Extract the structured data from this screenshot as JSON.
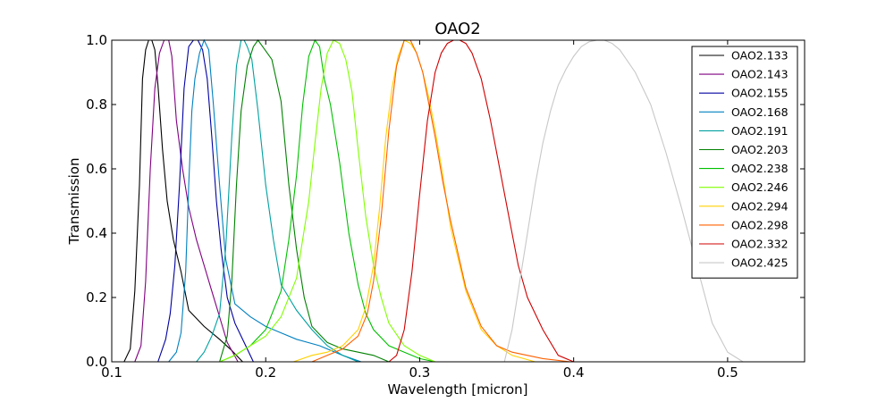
{
  "chart_data": {
    "type": "line",
    "title": "OAO2",
    "xlabel": "Wavelength [micron]",
    "ylabel": "Transmission",
    "xlim": [
      0.1,
      0.55
    ],
    "ylim": [
      0.0,
      1.0
    ],
    "xticks": [
      "0.1",
      "0.2",
      "0.3",
      "0.4",
      "0.5"
    ],
    "xtick_values": [
      0.1,
      0.2,
      0.3,
      0.4,
      0.5
    ],
    "yticks": [
      "0.0",
      "0.2",
      "0.4",
      "0.6",
      "0.8",
      "1.0"
    ],
    "ytick_values": [
      0.0,
      0.2,
      0.4,
      0.6,
      0.8,
      1.0
    ],
    "grid": false,
    "legend_position": "top-right",
    "series": [
      {
        "name": "OAO2.133",
        "color": "#000000",
        "x": [
          0.108,
          0.112,
          0.115,
          0.118,
          0.12,
          0.122,
          0.124,
          0.126,
          0.128,
          0.13,
          0.133,
          0.136,
          0.14,
          0.145,
          0.15,
          0.16,
          0.17,
          0.178,
          0.185
        ],
        "y": [
          0.0,
          0.04,
          0.22,
          0.55,
          0.88,
          0.97,
          1.0,
          1.0,
          0.97,
          0.86,
          0.66,
          0.5,
          0.38,
          0.28,
          0.16,
          0.11,
          0.07,
          0.035,
          0.0
        ]
      },
      {
        "name": "OAO2.143",
        "color": "#800080",
        "x": [
          0.115,
          0.119,
          0.122,
          0.125,
          0.128,
          0.131,
          0.134,
          0.137,
          0.139,
          0.142,
          0.146,
          0.15,
          0.155,
          0.16,
          0.165,
          0.17,
          0.175,
          0.182
        ],
        "y": [
          0.0,
          0.05,
          0.25,
          0.6,
          0.85,
          0.96,
          1.0,
          1.0,
          0.95,
          0.75,
          0.6,
          0.48,
          0.38,
          0.3,
          0.22,
          0.14,
          0.06,
          0.0
        ]
      },
      {
        "name": "OAO2.155",
        "color": "#0000a0",
        "x": [
          0.13,
          0.135,
          0.138,
          0.141,
          0.144,
          0.147,
          0.15,
          0.153,
          0.156,
          0.159,
          0.162,
          0.165,
          0.168,
          0.171,
          0.175,
          0.18,
          0.186,
          0.192
        ],
        "y": [
          0.0,
          0.07,
          0.15,
          0.3,
          0.55,
          0.85,
          0.98,
          1.0,
          1.0,
          0.97,
          0.88,
          0.7,
          0.5,
          0.35,
          0.2,
          0.12,
          0.06,
          0.0
        ]
      },
      {
        "name": "OAO2.168",
        "color": "#0080c0",
        "x": [
          0.137,
          0.142,
          0.145,
          0.148,
          0.15,
          0.152,
          0.154,
          0.157,
          0.16,
          0.163,
          0.166,
          0.17,
          0.174,
          0.18,
          0.19,
          0.2,
          0.21,
          0.22,
          0.235,
          0.25,
          0.262
        ],
        "y": [
          0.0,
          0.03,
          0.09,
          0.28,
          0.55,
          0.78,
          0.88,
          0.96,
          1.0,
          0.97,
          0.8,
          0.55,
          0.32,
          0.18,
          0.14,
          0.11,
          0.09,
          0.07,
          0.05,
          0.02,
          0.0
        ]
      },
      {
        "name": "OAO2.191",
        "color": "#00a0a0",
        "x": [
          0.155,
          0.16,
          0.165,
          0.17,
          0.174,
          0.178,
          0.181,
          0.184,
          0.186,
          0.188,
          0.191,
          0.195,
          0.2,
          0.205,
          0.21,
          0.22,
          0.23,
          0.24,
          0.25,
          0.26
        ],
        "y": [
          0.0,
          0.03,
          0.08,
          0.15,
          0.35,
          0.7,
          0.92,
          1.0,
          1.0,
          0.98,
          0.94,
          0.78,
          0.55,
          0.38,
          0.24,
          0.16,
          0.1,
          0.05,
          0.02,
          0.0
        ]
      },
      {
        "name": "OAO2.203",
        "color": "#008000",
        "x": [
          0.17,
          0.175,
          0.178,
          0.181,
          0.184,
          0.188,
          0.192,
          0.195,
          0.198,
          0.204,
          0.21,
          0.215,
          0.22,
          0.225,
          0.23,
          0.24,
          0.25,
          0.26,
          0.27,
          0.28
        ],
        "y": [
          0.0,
          0.08,
          0.25,
          0.55,
          0.78,
          0.92,
          0.98,
          1.0,
          0.98,
          0.94,
          0.81,
          0.55,
          0.35,
          0.2,
          0.11,
          0.06,
          0.04,
          0.03,
          0.02,
          0.0
        ]
      },
      {
        "name": "OAO2.238",
        "color": "#00c000",
        "x": [
          0.17,
          0.18,
          0.19,
          0.2,
          0.21,
          0.215,
          0.22,
          0.224,
          0.228,
          0.232,
          0.235,
          0.238,
          0.242,
          0.248,
          0.254,
          0.26,
          0.265,
          0.27,
          0.28,
          0.29,
          0.3,
          0.31
        ],
        "y": [
          0.0,
          0.02,
          0.05,
          0.1,
          0.22,
          0.38,
          0.58,
          0.8,
          0.95,
          1.0,
          0.98,
          0.88,
          0.8,
          0.62,
          0.4,
          0.24,
          0.15,
          0.1,
          0.05,
          0.03,
          0.01,
          0.0
        ]
      },
      {
        "name": "OAO2.246",
        "color": "#80ff00",
        "x": [
          0.17,
          0.18,
          0.19,
          0.2,
          0.21,
          0.22,
          0.228,
          0.232,
          0.236,
          0.24,
          0.244,
          0.248,
          0.252,
          0.256,
          0.26,
          0.265,
          0.27,
          0.275,
          0.28,
          0.29,
          0.3,
          0.31
        ],
        "y": [
          0.0,
          0.02,
          0.05,
          0.08,
          0.14,
          0.26,
          0.5,
          0.68,
          0.85,
          0.96,
          1.0,
          0.99,
          0.94,
          0.84,
          0.66,
          0.45,
          0.3,
          0.2,
          0.12,
          0.05,
          0.02,
          0.0
        ]
      },
      {
        "name": "OAO2.294",
        "color": "#ffd000",
        "x": [
          0.218,
          0.23,
          0.24,
          0.25,
          0.26,
          0.265,
          0.27,
          0.274,
          0.278,
          0.282,
          0.286,
          0.29,
          0.294,
          0.298,
          0.302,
          0.306,
          0.31,
          0.315,
          0.32,
          0.33,
          0.34,
          0.35,
          0.36,
          0.375
        ],
        "y": [
          0.0,
          0.02,
          0.03,
          0.05,
          0.1,
          0.17,
          0.3,
          0.48,
          0.7,
          0.85,
          0.95,
          1.0,
          0.99,
          0.96,
          0.9,
          0.82,
          0.72,
          0.58,
          0.42,
          0.22,
          0.1,
          0.05,
          0.02,
          0.0
        ]
      },
      {
        "name": "OAO2.298",
        "color": "#ff6000",
        "x": [
          0.23,
          0.24,
          0.25,
          0.26,
          0.266,
          0.27,
          0.275,
          0.28,
          0.285,
          0.29,
          0.294,
          0.298,
          0.302,
          0.306,
          0.31,
          0.315,
          0.32,
          0.33,
          0.34,
          0.35,
          0.36,
          0.38,
          0.398
        ],
        "y": [
          0.0,
          0.02,
          0.04,
          0.08,
          0.15,
          0.25,
          0.45,
          0.72,
          0.92,
          1.0,
          1.0,
          0.96,
          0.9,
          0.8,
          0.7,
          0.56,
          0.44,
          0.23,
          0.11,
          0.05,
          0.03,
          0.01,
          0.0
        ]
      },
      {
        "name": "OAO2.332",
        "color": "#d00000",
        "x": [
          0.28,
          0.285,
          0.29,
          0.295,
          0.3,
          0.305,
          0.31,
          0.314,
          0.318,
          0.322,
          0.326,
          0.33,
          0.334,
          0.34,
          0.346,
          0.352,
          0.358,
          0.364,
          0.37,
          0.38,
          0.39,
          0.4
        ],
        "y": [
          0.0,
          0.02,
          0.1,
          0.28,
          0.52,
          0.75,
          0.9,
          0.96,
          0.99,
          1.0,
          1.0,
          0.99,
          0.96,
          0.88,
          0.75,
          0.6,
          0.45,
          0.3,
          0.2,
          0.1,
          0.02,
          0.0
        ]
      },
      {
        "name": "OAO2.425",
        "color": "#c8c8c8",
        "x": [
          0.355,
          0.36,
          0.365,
          0.37,
          0.375,
          0.38,
          0.385,
          0.39,
          0.395,
          0.4,
          0.405,
          0.41,
          0.415,
          0.42,
          0.425,
          0.43,
          0.44,
          0.45,
          0.46,
          0.47,
          0.48,
          0.49,
          0.5,
          0.51
        ],
        "y": [
          0.0,
          0.1,
          0.25,
          0.4,
          0.55,
          0.68,
          0.78,
          0.86,
          0.91,
          0.95,
          0.98,
          0.995,
          1.0,
          1.0,
          0.99,
          0.97,
          0.9,
          0.8,
          0.65,
          0.48,
          0.3,
          0.12,
          0.03,
          0.0
        ]
      }
    ]
  }
}
